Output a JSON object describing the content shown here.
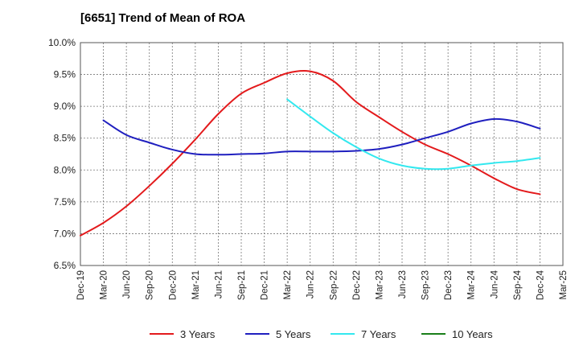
{
  "chart_data": {
    "type": "line",
    "title": "[6651]  Trend of Mean of ROA",
    "xlabel": "",
    "ylabel": "",
    "ylim": [
      6.5,
      10.0
    ],
    "grid": true,
    "legend_position": "bottom",
    "x_ticks": [
      "Dec-19",
      "Mar-20",
      "Jun-20",
      "Sep-20",
      "Dec-20",
      "Mar-21",
      "Jun-21",
      "Sep-21",
      "Dec-21",
      "Mar-22",
      "Jun-22",
      "Sep-22",
      "Dec-22",
      "Mar-23",
      "Jun-23",
      "Sep-23",
      "Dec-23",
      "Mar-24",
      "Jun-24",
      "Sep-24",
      "Dec-24",
      "Mar-25"
    ],
    "y_ticks": [
      {
        "value": 6.5,
        "label": "6.5%"
      },
      {
        "value": 7.0,
        "label": "7.0%"
      },
      {
        "value": 7.5,
        "label": "7.5%"
      },
      {
        "value": 8.0,
        "label": "8.0%"
      },
      {
        "value": 8.5,
        "label": "8.5%"
      },
      {
        "value": 9.0,
        "label": "9.0%"
      },
      {
        "value": 9.5,
        "label": "9.5%"
      },
      {
        "value": 10.0,
        "label": "10.0%"
      }
    ],
    "series": [
      {
        "name": "3 Years",
        "color": "#e31a1c",
        "values": [
          6.97,
          7.17,
          7.43,
          7.75,
          8.1,
          8.48,
          8.88,
          9.2,
          9.37,
          9.52,
          9.55,
          9.4,
          9.07,
          8.83,
          8.6,
          8.4,
          8.25,
          8.07,
          7.87,
          7.7,
          7.62,
          null
        ]
      },
      {
        "name": "5 Years",
        "color": "#1f1fbf",
        "values": [
          null,
          8.78,
          8.55,
          8.43,
          8.32,
          8.25,
          8.24,
          8.25,
          8.26,
          8.29,
          8.29,
          8.29,
          8.3,
          8.33,
          8.4,
          8.5,
          8.6,
          8.73,
          8.8,
          8.76,
          8.65,
          null
        ]
      },
      {
        "name": "7 Years",
        "color": "#33e8ef",
        "values": [
          null,
          null,
          null,
          null,
          null,
          null,
          null,
          null,
          null,
          9.11,
          8.84,
          8.58,
          8.36,
          8.18,
          8.07,
          8.02,
          8.02,
          8.07,
          8.11,
          8.14,
          8.19,
          null
        ]
      },
      {
        "name": "10 Years",
        "color": "#1a7f1a",
        "values": [
          null,
          null,
          null,
          null,
          null,
          null,
          null,
          null,
          null,
          null,
          null,
          null,
          null,
          null,
          null,
          null,
          null,
          null,
          null,
          null,
          null,
          null
        ]
      }
    ]
  }
}
